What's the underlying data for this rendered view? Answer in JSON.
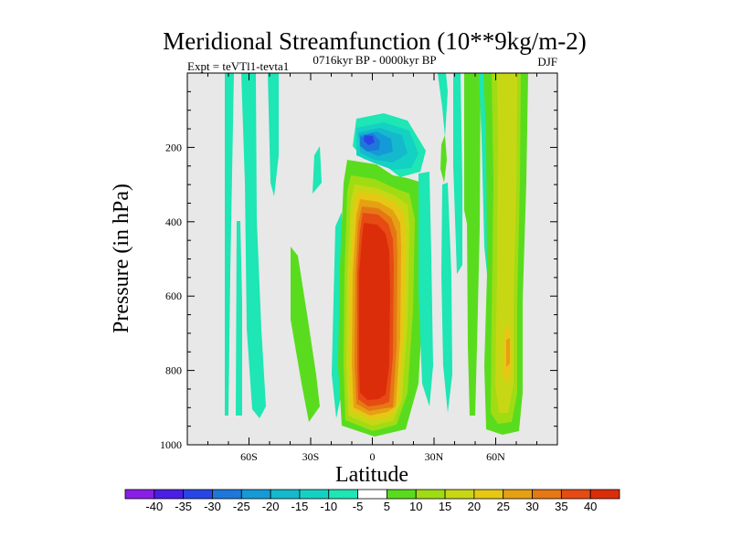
{
  "chart_data": {
    "type": "heatmap",
    "title": "Meridional Streamfunction (10**9kg/m-2)",
    "subtitle_left": "Expt = teVTl1-tevta1",
    "subtitle_center": "0716kyr BP - 0000kyr BP",
    "subtitle_right": "DJF",
    "xlabel": "Latitude",
    "ylabel": "Pressure (in hPa)",
    "xlim": [
      -90,
      90
    ],
    "ylim": [
      1000,
      0
    ],
    "x_ticks": [
      {
        "value": -60,
        "label": "60S"
      },
      {
        "value": -30,
        "label": "30S"
      },
      {
        "value": 0,
        "label": "0"
      },
      {
        "value": 30,
        "label": "30N"
      },
      {
        "value": 60,
        "label": "60N"
      }
    ],
    "y_ticks": [
      {
        "value": 200,
        "label": "200"
      },
      {
        "value": 400,
        "label": "400"
      },
      {
        "value": 600,
        "label": "600"
      },
      {
        "value": 800,
        "label": "800"
      },
      {
        "value": 1000,
        "label": "1000"
      }
    ],
    "background_color": "#e8e8e8",
    "colorbar": {
      "labels": [
        "-40",
        "-35",
        "-30",
        "-25",
        "-20",
        "-15",
        "-10",
        "-5",
        "5",
        "10",
        "15",
        "20",
        "25",
        "30",
        "35",
        "40"
      ],
      "colors": [
        "#8a1ee6",
        "#4b1ee6",
        "#2846e6",
        "#1e78dc",
        "#149bd7",
        "#14b9cd",
        "#14d2c3",
        "#1ee6b4",
        "#ffffff",
        "#5adc1e",
        "#a0dc14",
        "#c8d714",
        "#e6c814",
        "#e6a014",
        "#e67814",
        "#e64b14",
        "#dc2d0a"
      ]
    },
    "features": [
      {
        "name": "equatorial-positive-cell",
        "lat_range": [
          -8,
          13
        ],
        "p_range": [
          170,
          990
        ],
        "peak": 40,
        "center": [
          0,
          700
        ]
      },
      {
        "name": "upper-negative-cell",
        "lat_range": [
          -10,
          14
        ],
        "p_range": [
          120,
          270
        ],
        "peak": -30,
        "center": [
          -1,
          180
        ]
      },
      {
        "name": "nh-midlatitude-positive-band",
        "lat_range": [
          54,
          67
        ],
        "p_range": [
          0,
          975
        ],
        "peak": 25,
        "center": [
          61,
          760
        ]
      }
    ]
  }
}
